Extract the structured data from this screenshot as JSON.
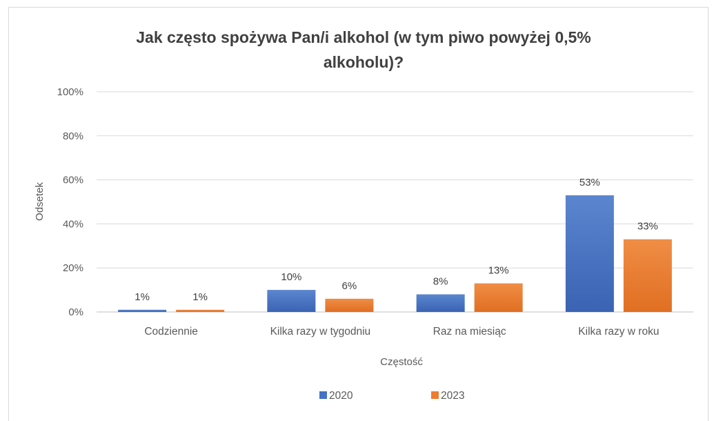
{
  "chart_data": {
    "type": "bar",
    "title_lines": [
      "Jak często spożywa Pan/i alkohol (w tym piwo powyżej 0,5%",
      "alkoholu)?"
    ],
    "xlabel": "Częstość",
    "ylabel": "Odsetek",
    "ylim": [
      0,
      100
    ],
    "yticks": [
      "0%",
      "20%",
      "40%",
      "60%",
      "80%",
      "100%"
    ],
    "grid": true,
    "legend_position": "bottom",
    "categories": [
      "Codziennie",
      "Kilka razy w tygodniu",
      "Raz na miesiąc",
      "Kilka razy w roku"
    ],
    "series": [
      {
        "name": "2020",
        "color": "#4472C4",
        "values": [
          1,
          10,
          8,
          53
        ],
        "labels": [
          "1%",
          "10%",
          "8%",
          "53%"
        ]
      },
      {
        "name": "2023",
        "color": "#ED7D31",
        "values": [
          1,
          6,
          13,
          33
        ],
        "labels": [
          "1%",
          "6%",
          "13%",
          "33%"
        ]
      }
    ]
  }
}
